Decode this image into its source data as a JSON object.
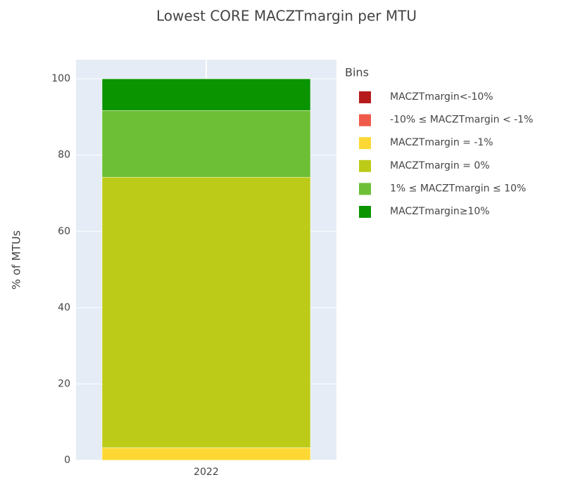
{
  "chart_data": {
    "type": "stacked_bar",
    "title": "Lowest CORE MACZTmargin per MTU",
    "y_label": "% of MTUs",
    "legend_title": "Bins",
    "categories": [
      "2022"
    ],
    "series": [
      {
        "name": "MACZTmargin<-10%",
        "color": "#b71c1c",
        "values": [
          0
        ]
      },
      {
        "name": "-10% ≤ MACZTmargin < -1%",
        "color": "#ef5a4a",
        "values": [
          0
        ]
      },
      {
        "name": "MACZTmargin = -1%",
        "color": "#fdd835",
        "values": [
          3.3
        ]
      },
      {
        "name": "MACZTmargin = 0%",
        "color": "#bccb17",
        "values": [
          70.9
        ]
      },
      {
        "name": "1% ≤ MACZTmargin ≤ 10%",
        "color": "#6dbf35",
        "values": [
          17.5
        ]
      },
      {
        "name": "MACZTmargin≥10%",
        "color": "#0a9400",
        "values": [
          8.3
        ]
      }
    ],
    "ylim": [
      0,
      105
    ],
    "yticks": [
      0,
      20,
      40,
      60,
      80,
      100
    ],
    "grid": true
  }
}
